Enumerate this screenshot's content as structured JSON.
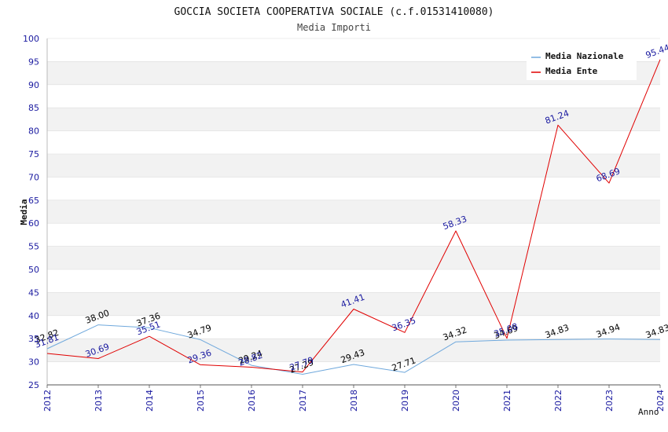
{
  "chart_data": {
    "type": "line",
    "title": "GOCCIA SOCIETA COOPERATIVA SOCIALE (c.f.01531410080)",
    "subtitle": "Media Importi",
    "xlabel": "Anno",
    "ylabel": "Media",
    "ylim": [
      25,
      100
    ],
    "yticks": [
      25,
      30,
      35,
      40,
      45,
      50,
      55,
      60,
      65,
      70,
      75,
      80,
      85,
      90,
      95,
      100
    ],
    "x": [
      "2012",
      "2013",
      "2014",
      "2015",
      "2016",
      "2017",
      "2018",
      "2019",
      "2020",
      "2021",
      "2022",
      "2023",
      "2024"
    ],
    "grid": true,
    "legend_position": "top-right",
    "series": [
      {
        "name": "Media Nazionale",
        "color": "#6fa8dc",
        "label_color": "#000000",
        "values": [
          32.82,
          38.0,
          37.36,
          34.79,
          29.24,
          27.29,
          29.43,
          27.71,
          34.32,
          34.69,
          34.83,
          34.94,
          34.83
        ],
        "labels": [
          "32.82",
          "38.00",
          "37.36",
          "34.79",
          "29.24",
          "27.29",
          "29.43",
          "27.71",
          "34.32",
          "34.69",
          "34.83",
          "34.94",
          "34.83"
        ]
      },
      {
        "name": "Media Ente",
        "color": "#e00000",
        "label_color": "#1a1aa0",
        "values": [
          31.81,
          30.69,
          35.51,
          29.36,
          28.82,
          27.79,
          41.41,
          36.35,
          58.33,
          35.08,
          81.24,
          68.69,
          95.44
        ],
        "labels": [
          "31.81",
          "30.69",
          "35.51",
          "29.36",
          "28.82",
          "27.79",
          "41.41",
          "36.35",
          "58.33",
          "35.08",
          "81.24",
          "68.69",
          "95.44"
        ]
      }
    ],
    "colors": {
      "axis_text": "#1a1aa0",
      "band": "#f2f2f2",
      "grid": "#dddddd"
    }
  }
}
